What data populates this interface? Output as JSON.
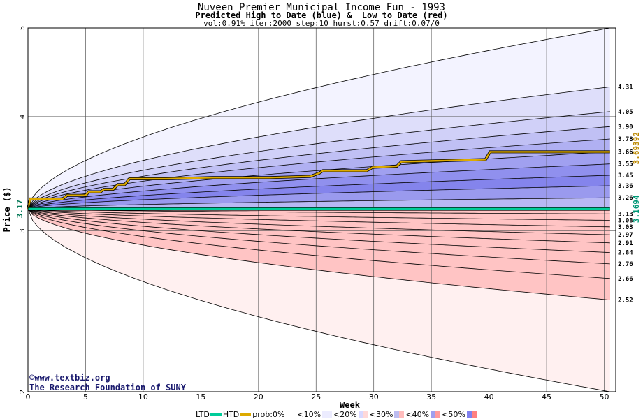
{
  "titles": {
    "main": "Nuveen Premier Municipal Income Fun - 1993",
    "sub": "Predicted High to Date (blue) &  Low to Date (red)",
    "params": "vol:0.91% iter:2000 step:10 hurst:0.57 drift:0.07/0"
  },
  "credits": {
    "line1": "©www.textbiz.org",
    "line2": "The Research Foundation of SUNY"
  },
  "legend": {
    "ltd": "LTD",
    "htd": "HTD",
    "prob": "prob:0%",
    "b10": "<10%",
    "b20": "<20%",
    "b30": "<30%",
    "b40": "<40%",
    "b50": "<50%",
    "ltd_color": "#00cc99",
    "htd_color": "#ddaa00",
    "band_colors": [
      "#ffffff",
      "#eeeeff",
      "#d8d8ff",
      "#bcbcf0",
      "#a0a0ee",
      "#8080ee"
    ]
  },
  "chart_data": {
    "type": "area",
    "xlabel": "Week",
    "ylabel": "Price ($)",
    "xlim": [
      0,
      51
    ],
    "ylim": [
      2,
      5
    ],
    "log_scale_y": true,
    "grid": true,
    "x_ticks": [
      0,
      5,
      10,
      15,
      20,
      25,
      30,
      35,
      40,
      45,
      50
    ],
    "x_tick_labels": [
      "0",
      "5",
      "10",
      "15",
      "20",
      "25",
      "30",
      "35",
      "40",
      "45",
      "50"
    ],
    "y_ticks": [
      2,
      3,
      4,
      5
    ],
    "y_tick_labels": [
      "2",
      "3",
      "4",
      "5"
    ],
    "start_price": 3.17,
    "start_price_label": "3.17",
    "right_labels": [
      {
        "text": "3.69392",
        "value": 3.69392,
        "color": "#bb8800"
      },
      {
        "text": "3.1694",
        "value": 3.1694,
        "color": "#009977"
      }
    ],
    "upper_percentile_ends": [
      {
        "label": "4.31",
        "value": 4.31
      },
      {
        "label": "4.05",
        "value": 4.05
      },
      {
        "label": "3.90",
        "value": 3.9
      },
      {
        "label": "3.78",
        "value": 3.78
      },
      {
        "label": "3.66",
        "value": 3.66
      },
      {
        "label": "3.55",
        "value": 3.55
      },
      {
        "label": "3.45",
        "value": 3.45
      },
      {
        "label": "3.36",
        "value": 3.36
      },
      {
        "label": "3.26",
        "value": 3.26
      }
    ],
    "lower_percentile_ends": [
      {
        "label": "3.13",
        "value": 3.13
      },
      {
        "label": "3.08",
        "value": 3.08
      },
      {
        "label": "3.03",
        "value": 3.03
      },
      {
        "label": "2.97",
        "value": 2.97
      },
      {
        "label": "2.91",
        "value": 2.91
      },
      {
        "label": "2.84",
        "value": 2.84
      },
      {
        "label": "2.76",
        "value": 2.76
      },
      {
        "label": "2.66",
        "value": 2.66
      },
      {
        "label": "2.52",
        "value": 2.52
      }
    ],
    "upper_outer_end": 5.0,
    "lower_outer_end": 2.0,
    "series": [
      {
        "name": "HTD",
        "color": "#ddaa00",
        "points": [
          [
            0,
            3.17
          ],
          [
            0.2,
            3.25
          ],
          [
            1,
            3.25
          ],
          [
            3,
            3.25
          ],
          [
            3.4,
            3.28
          ],
          [
            5,
            3.28
          ],
          [
            5.3,
            3.31
          ],
          [
            6.3,
            3.31
          ],
          [
            6.6,
            3.33
          ],
          [
            7.4,
            3.33
          ],
          [
            7.8,
            3.37
          ],
          [
            8.4,
            3.37
          ],
          [
            8.8,
            3.42
          ],
          [
            12,
            3.42
          ],
          [
            16,
            3.43
          ],
          [
            21,
            3.43
          ],
          [
            24.5,
            3.44
          ],
          [
            25.3,
            3.47
          ],
          [
            25.6,
            3.49
          ],
          [
            29.4,
            3.49
          ],
          [
            29.9,
            3.52
          ],
          [
            32,
            3.53
          ],
          [
            32.4,
            3.57
          ],
          [
            36,
            3.58
          ],
          [
            39.7,
            3.59
          ],
          [
            40.1,
            3.66
          ],
          [
            45,
            3.66
          ],
          [
            50.5,
            3.66
          ]
        ]
      },
      {
        "name": "LTD",
        "color": "#00cc99",
        "points": [
          [
            0,
            3.17
          ],
          [
            50.5,
            3.17
          ]
        ]
      }
    ]
  }
}
